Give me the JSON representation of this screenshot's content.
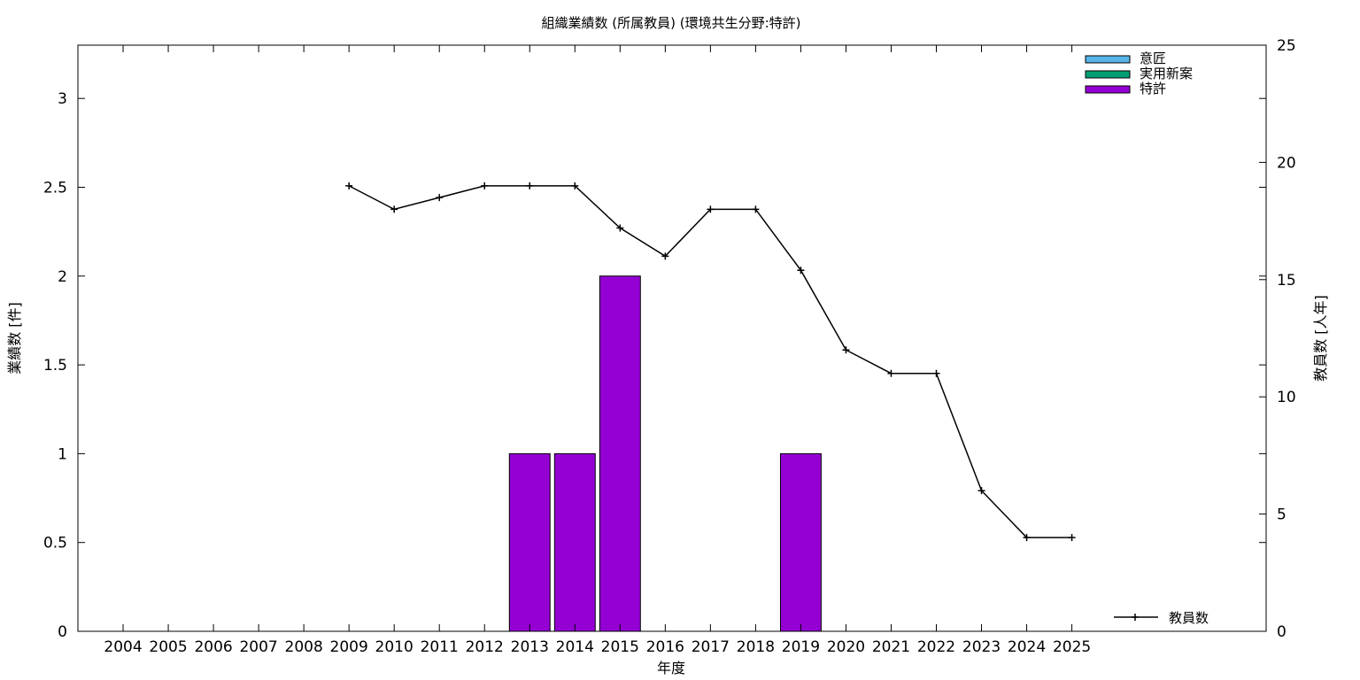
{
  "chart_data": {
    "type": "bar",
    "title": "組織業績数 (所属教員) (環境共生分野:特許)",
    "xlabel": "年度",
    "ylabel": "業績数 [件]",
    "y2label": "教員数 [人年]",
    "categories": [
      "2004",
      "2005",
      "2006",
      "2007",
      "2008",
      "2009",
      "2010",
      "2011",
      "2012",
      "2013",
      "2014",
      "2015",
      "2016",
      "2017",
      "2018",
      "2019",
      "2020",
      "2021",
      "2022",
      "2023",
      "2024",
      "2025"
    ],
    "ylim": [
      0,
      3.3
    ],
    "yticks": [
      "0",
      "0.5",
      "1",
      "1.5",
      "2",
      "2.5",
      "3"
    ],
    "y2lim": [
      0,
      25
    ],
    "y2ticks": [
      "0",
      "5",
      "10",
      "15",
      "20",
      "25"
    ],
    "grid": false,
    "legend_position": "top-right",
    "series": [
      {
        "name": "意匠",
        "kind": "bar",
        "color": "#56b4e9",
        "values": [
          0,
          0,
          0,
          0,
          0,
          0,
          0,
          0,
          0,
          0,
          0,
          0,
          0,
          0,
          0,
          0,
          0,
          0,
          0,
          0,
          0,
          0
        ]
      },
      {
        "name": "実用新案",
        "kind": "bar",
        "color": "#009e73",
        "values": [
          0,
          0,
          0,
          0,
          0,
          0,
          0,
          0,
          0,
          0,
          0,
          0,
          0,
          0,
          0,
          0,
          0,
          0,
          0,
          0,
          0,
          0
        ]
      },
      {
        "name": "特許",
        "kind": "bar",
        "color": "#9400d3",
        "values": [
          0,
          0,
          0,
          0,
          0,
          0,
          0,
          0,
          0,
          1,
          1,
          2,
          0,
          0,
          0,
          1,
          0,
          0,
          0,
          0,
          0,
          0
        ]
      }
    ],
    "line_series": {
      "name": "教員数",
      "axis": "right",
      "color": "#000000",
      "x": [
        "2009",
        "2010",
        "2011",
        "2012",
        "2013",
        "2014",
        "2015",
        "2016",
        "2017",
        "2018",
        "2019",
        "2020",
        "2021",
        "2022",
        "2023",
        "2024",
        "2025"
      ],
      "values": [
        19,
        18,
        18.5,
        19,
        19,
        19,
        17.2,
        16,
        18,
        18,
        15.4,
        12,
        11,
        11,
        6,
        4,
        4
      ]
    }
  }
}
